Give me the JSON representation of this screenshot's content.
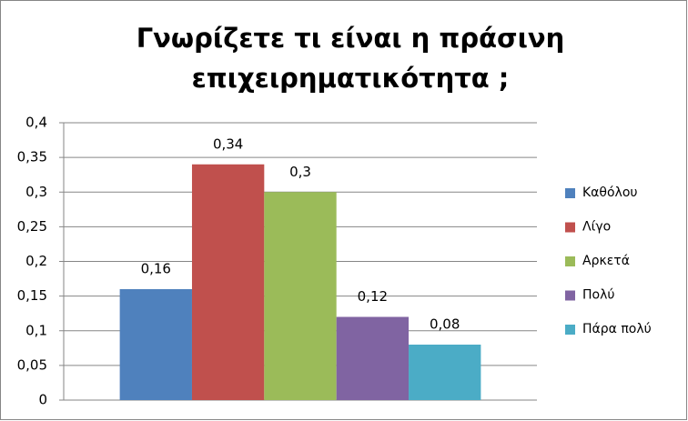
{
  "chart_data": {
    "type": "bar",
    "title": [
      "Γνωρίζετε τι είναι η πράσινη",
      "επιχειρηματικότητα ;"
    ],
    "categories": [
      null
    ],
    "series": [
      {
        "name": "Καθόλου",
        "color": "#4f81bd",
        "values": [
          0.16
        ],
        "value_labels": [
          "0,16"
        ]
      },
      {
        "name": "Λίγο",
        "color": "#c0504d",
        "values": [
          0.34
        ],
        "value_labels": [
          "0,34"
        ]
      },
      {
        "name": "Αρκετά",
        "color": "#9bbb59",
        "values": [
          0.3
        ],
        "value_labels": [
          "0,3"
        ]
      },
      {
        "name": "Πολύ",
        "color": "#8064a2",
        "values": [
          0.12
        ],
        "value_labels": [
          "0,12"
        ]
      },
      {
        "name": "Πάρα πολύ",
        "color": "#4bacc6",
        "values": [
          0.08
        ],
        "value_labels": [
          "0,08"
        ]
      }
    ],
    "ylim": [
      0,
      0.4
    ],
    "yticks": [
      0,
      {
        "value": 0.05,
        "label": "0,05"
      },
      {
        "value": 0.1,
        "label": "0,1"
      },
      {
        "value": 0.15,
        "label": "0,15"
      },
      {
        "value": 0.2,
        "label": "0,2"
      },
      {
        "value": 0.25,
        "label": "0,25"
      },
      {
        "value": 0.3,
        "label": "0,3"
      },
      {
        "value": 0.35,
        "label": "0,35"
      },
      {
        "value": 0.4,
        "label": "0,4"
      }
    ],
    "grid": true,
    "legend": "right"
  }
}
